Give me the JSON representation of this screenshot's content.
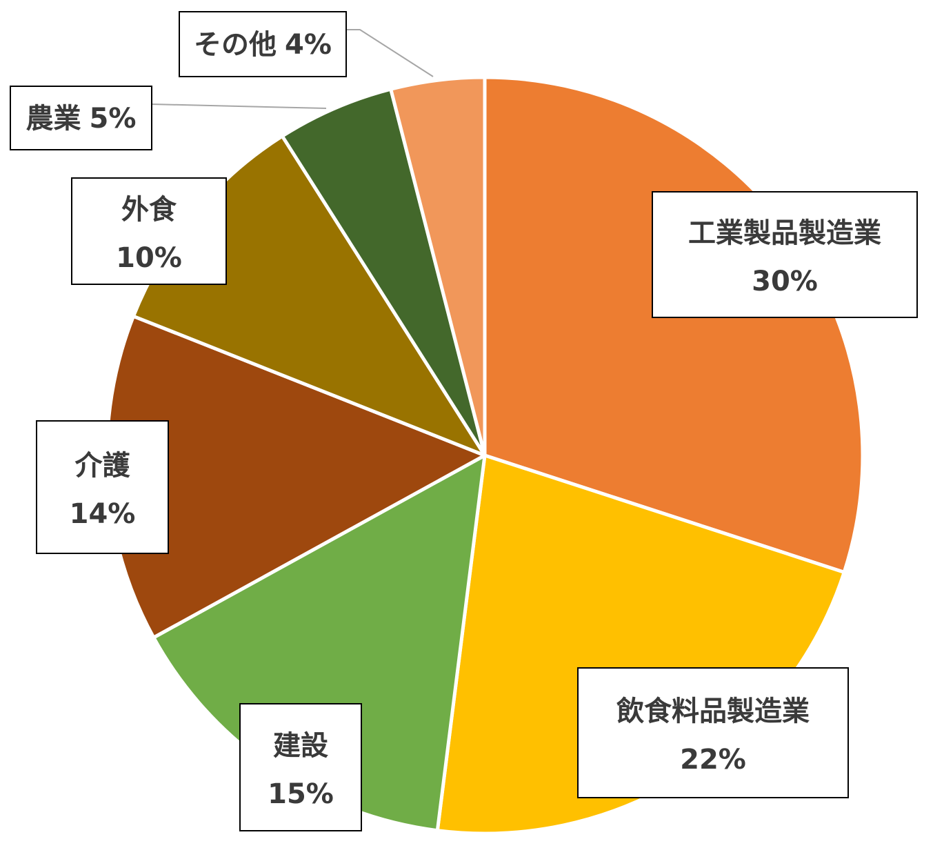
{
  "chart_data": {
    "type": "pie",
    "start_angle_deg": 0,
    "direction": "clockwise",
    "legend": "none",
    "slices": [
      {
        "name": "工業製品製造業",
        "value": 30,
        "label": "30%",
        "color": "#ED7D31"
      },
      {
        "name": "飲食料品製造業",
        "value": 22,
        "label": "22%",
        "color": "#FFC000"
      },
      {
        "name": "建設",
        "value": 15,
        "label": "15%",
        "color": "#70AD47"
      },
      {
        "name": "介護",
        "value": 14,
        "label": "14%",
        "color": "#9E480E"
      },
      {
        "name": "外食",
        "value": 10,
        "label": "10%",
        "color": "#997300"
      },
      {
        "name": "農業",
        "value": 5,
        "label": "5%",
        "color": "#43682B"
      },
      {
        "name": "その他",
        "value": 4,
        "label": "4%",
        "color": "#F1975A"
      }
    ]
  }
}
